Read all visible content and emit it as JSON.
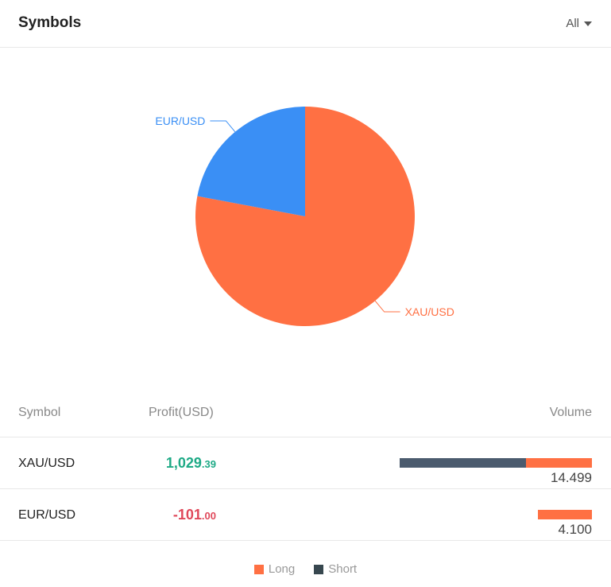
{
  "header": {
    "title": "Symbols",
    "filter_label": "All"
  },
  "colors": {
    "long": "#ff7043",
    "short": "#37474f",
    "short_bar": "#4b5b6e",
    "eurusd": "#3a8ff5",
    "positive": "#1eaa86",
    "negative": "#e0485a"
  },
  "chart_data": {
    "type": "pie",
    "slices": [
      {
        "label": "XAU/USD",
        "value": 14.499,
        "color": "#ff7043"
      },
      {
        "label": "EUR/USD",
        "value": 4.1,
        "color": "#3a8ff5"
      }
    ]
  },
  "table": {
    "headers": {
      "symbol": "Symbol",
      "profit": "Profit(USD)",
      "volume": "Volume"
    },
    "rows": [
      {
        "symbol": "XAU/USD",
        "profit_int": "1,029",
        "profit_dec": ".39",
        "sign": "pos",
        "volume": "14.499",
        "short_volume": 9.5,
        "long_volume": 4.999
      },
      {
        "symbol": "EUR/USD",
        "profit_int": "-101",
        "profit_dec": ".00",
        "sign": "neg",
        "volume": "4.100",
        "short_volume": 0,
        "long_volume": 4.1
      }
    ]
  },
  "legend": {
    "long": "Long",
    "short": "Short"
  }
}
